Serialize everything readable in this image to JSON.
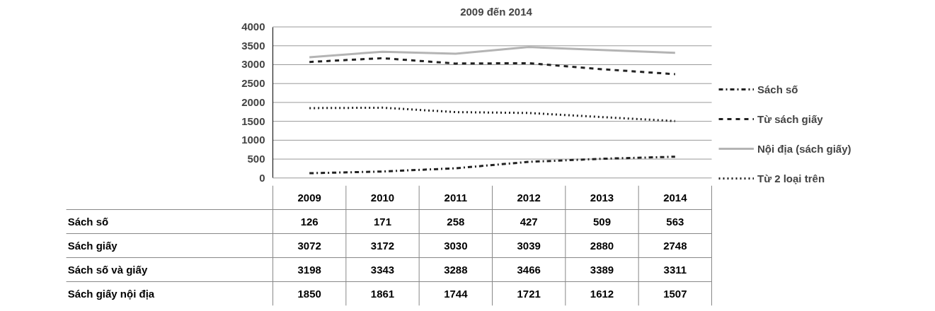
{
  "chart_data": {
    "type": "line",
    "title": "2009 đến 2014",
    "categories": [
      "2009",
      "2010",
      "2011",
      "2012",
      "2013",
      "2014"
    ],
    "series": [
      {
        "name": "Sách số",
        "color": "#222222",
        "line_style": "dashdot",
        "values": [
          126,
          171,
          258,
          427,
          509,
          563
        ]
      },
      {
        "name": "Từ sách giấy",
        "color": "#222222",
        "line_style": "dashed",
        "values": [
          3072,
          3172,
          3030,
          3039,
          2880,
          2748
        ]
      },
      {
        "name": "Nội địa (sách giấy)",
        "color": "#b4b4b4",
        "line_style": "solid",
        "values": [
          3198,
          3343,
          3288,
          3466,
          3389,
          3311
        ]
      },
      {
        "name": "Từ 2 loại trên",
        "color": "#222222",
        "line_style": "dotted",
        "values": [
          1850,
          1861,
          1744,
          1721,
          1612,
          1507
        ]
      }
    ],
    "annotations": [
      "Sách số",
      "Sách giấy",
      "Sách số và giấy",
      "Sách giấy nội địa"
    ],
    "ylim": [
      0,
      4000
    ],
    "yticks": [
      0,
      500,
      1000,
      1500,
      2000,
      2500,
      3000,
      3500,
      4000
    ],
    "grid": "y",
    "legend": "right",
    "data_labels": true
  }
}
